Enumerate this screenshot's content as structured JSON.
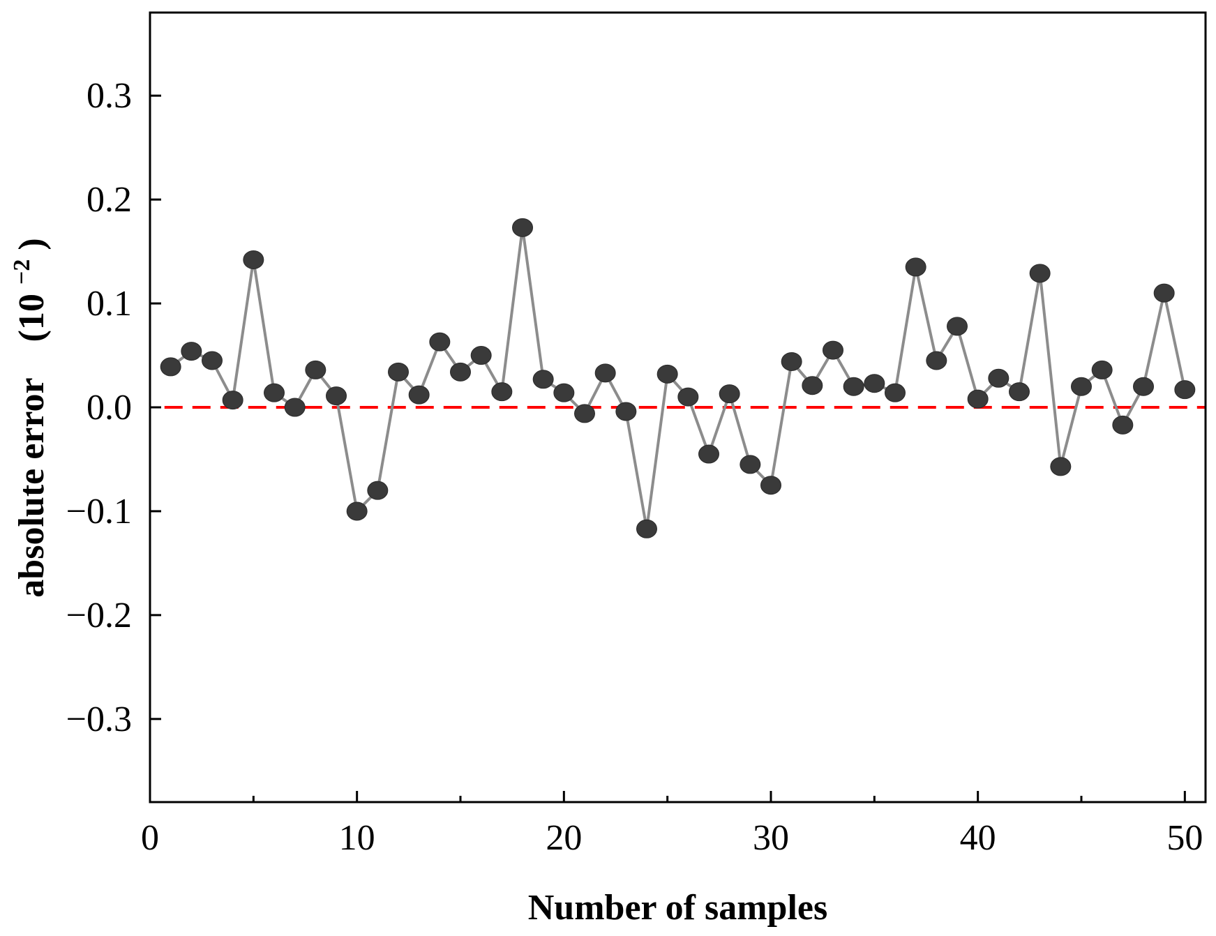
{
  "chart_data": {
    "type": "line",
    "title": "",
    "xlabel": "Number of samples",
    "ylabel_main": "absolute error",
    "ylabel_unit_prefix": "(10",
    "ylabel_unit_exponent": "−2",
    "ylabel_unit_suffix": ")",
    "xlim": [
      0,
      51
    ],
    "ylim": [
      -0.38,
      0.38
    ],
    "x_ticks": [
      0,
      10,
      20,
      30,
      40,
      50
    ],
    "x_tick_labels": [
      "0",
      "10",
      "20",
      "30",
      "40",
      "50"
    ],
    "x_minor_ticks": [
      5,
      15,
      25,
      35,
      45
    ],
    "y_ticks": [
      -0.3,
      -0.2,
      -0.1,
      0.0,
      0.1,
      0.2,
      0.3
    ],
    "y_tick_labels": [
      "−0.3",
      "−0.2",
      "−0.1",
      "0.0",
      "0.1",
      "0.2",
      "0.3"
    ],
    "reference_line": {
      "y": 0.0,
      "style": "dashed",
      "color": "#ff0000",
      "x_start": 0.7
    },
    "series": [
      {
        "name": "absolute error",
        "line_color": "#8c8c8c",
        "marker_color": "#3a3a3a",
        "x": [
          1,
          2,
          3,
          4,
          5,
          6,
          7,
          8,
          9,
          10,
          11,
          12,
          13,
          14,
          15,
          16,
          17,
          18,
          19,
          20,
          21,
          22,
          23,
          24,
          25,
          26,
          27,
          28,
          29,
          30,
          31,
          32,
          33,
          34,
          35,
          36,
          37,
          38,
          39,
          40,
          41,
          42,
          43,
          44,
          45,
          46,
          47,
          48,
          49,
          50
        ],
        "values": [
          0.039,
          0.054,
          0.045,
          0.007,
          0.142,
          0.014,
          0.0,
          0.036,
          0.011,
          -0.1,
          -0.08,
          0.034,
          0.012,
          0.063,
          0.034,
          0.05,
          0.015,
          0.173,
          0.027,
          0.014,
          -0.006,
          0.033,
          -0.004,
          -0.117,
          0.032,
          0.01,
          -0.045,
          0.013,
          -0.055,
          -0.075,
          0.044,
          0.021,
          0.055,
          0.02,
          0.023,
          0.014,
          0.135,
          0.045,
          0.078,
          0.008,
          0.028,
          0.015,
          0.129,
          -0.057,
          0.02,
          0.036,
          -0.017,
          0.02,
          0.11,
          0.017
        ]
      }
    ]
  }
}
